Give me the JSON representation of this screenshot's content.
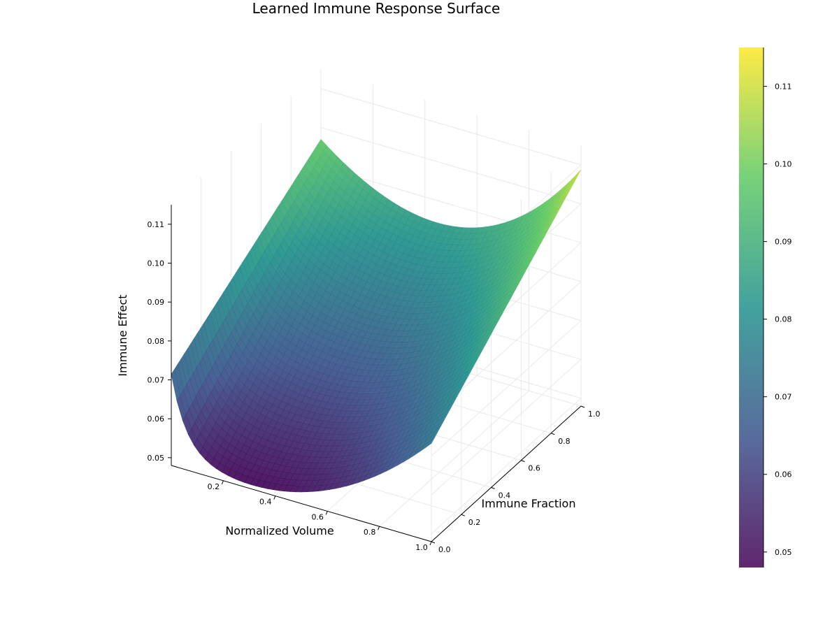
{
  "chart_data": {
    "type": "surface",
    "title": "Learned Immune Response Surface",
    "xlabel": "Normalized Volume",
    "ylabel": "Immune Fraction",
    "zlabel": "Immune Effect",
    "xlim": [
      0.0,
      1.0
    ],
    "ylim": [
      0.0,
      1.0
    ],
    "zlim": [
      0.048,
      0.115
    ],
    "x_ticks": [
      "0.2",
      "0.4",
      "0.6",
      "0.8",
      "1.0"
    ],
    "y_ticks": [
      "0.0",
      "0.2",
      "0.4",
      "0.6",
      "0.8",
      "1.0"
    ],
    "z_ticks": [
      "0.05",
      "0.06",
      "0.07",
      "0.08",
      "0.09",
      "0.10",
      "0.11"
    ],
    "colorbar_ticks": [
      "0.05",
      "0.06",
      "0.07",
      "0.08",
      "0.09",
      "0.10",
      "0.11"
    ],
    "colormap": "viridis",
    "colors": [
      "#440154",
      "#3b528b",
      "#21918c",
      "#5ec962",
      "#fde725"
    ],
    "grid": true,
    "legend": "colorbar-right",
    "surface_samples": {
      "corners": [
        {
          "x": 0.0,
          "y": 0.0,
          "z": 0.068
        },
        {
          "x": 0.0,
          "y": 1.0,
          "z": 0.088
        },
        {
          "x": 1.0,
          "y": 1.0,
          "z": 0.115
        },
        {
          "x": 1.0,
          "y": 0.0,
          "z": 0.078
        }
      ],
      "minimum": {
        "x": 0.3,
        "y": 0.0,
        "z": 0.049
      }
    }
  }
}
